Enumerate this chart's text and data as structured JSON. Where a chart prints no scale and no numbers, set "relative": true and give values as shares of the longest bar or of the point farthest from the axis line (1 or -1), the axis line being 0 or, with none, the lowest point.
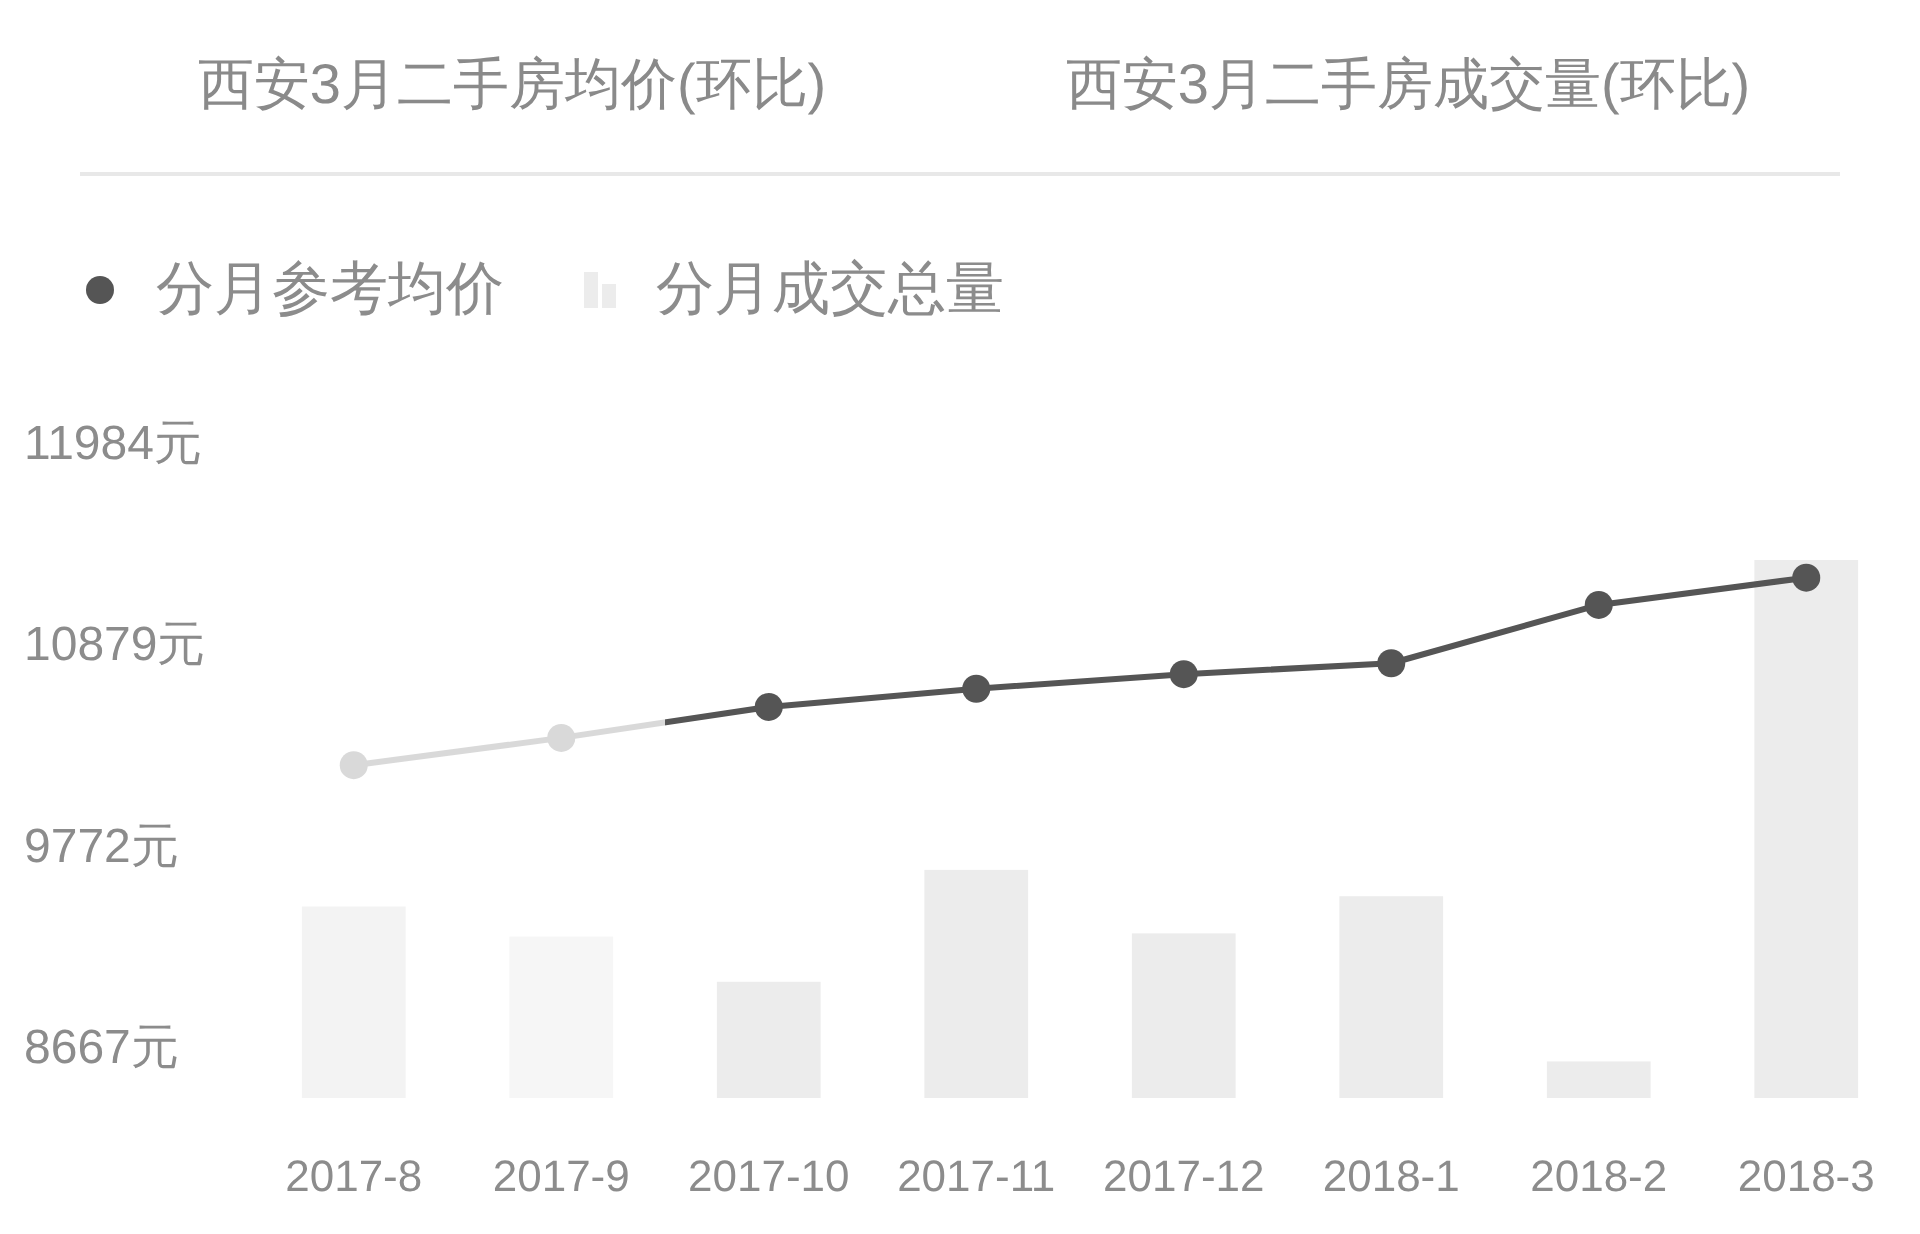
{
  "chart_data": [
    {
      "type": "line",
      "title": "西安3月二手房均价(环比)",
      "subtitle": "西安3月二手房成交量(环比)",
      "categories": [
        "2017-8",
        "2017-9",
        "2017-10",
        "2017-11",
        "2017-12",
        "2018-1",
        "2018-2",
        "2018-3"
      ],
      "series": [
        {
          "name": "分月参考均价",
          "color": "#555555",
          "colors": [
            "#d9d9d9",
            "#d9d9d9",
            "#555555",
            "#555555",
            "#555555",
            "#555555",
            "#555555",
            "#555555"
          ],
          "values": [
            10220,
            10370,
            10540,
            10640,
            10720,
            10780,
            11100,
            11250
          ]
        }
      ],
      "ylim": [
        8667,
        11984
      ],
      "yticks": [
        {
          "value": 8667,
          "label": "8667元"
        },
        {
          "value": 9772,
          "label": "9772元"
        },
        {
          "value": 10879,
          "label": "10879元"
        },
        {
          "value": 11984,
          "label": "11984元"
        }
      ],
      "marker": "circle",
      "legend": "top left"
    },
    {
      "type": "bar",
      "relative": true,
      "tick_labels": false,
      "categories": [
        "2017-8",
        "2017-9",
        "2017-10",
        "2017-11",
        "2017-12",
        "2018-1",
        "2018-2",
        "2018-3"
      ],
      "series": [
        {
          "name": "分月成交总量",
          "color": "#ececec",
          "colors": [
            "#f3f3f3",
            "#f6f6f6",
            "#ececec",
            "#ececec",
            "#ececec",
            "#ececec",
            "#ececec",
            "#ececec"
          ],
          "values": [
            0.356,
            0.3,
            0.216,
            0.424,
            0.306,
            0.375,
            0.068,
            1
          ]
        }
      ],
      "legend": "top left"
    }
  ]
}
